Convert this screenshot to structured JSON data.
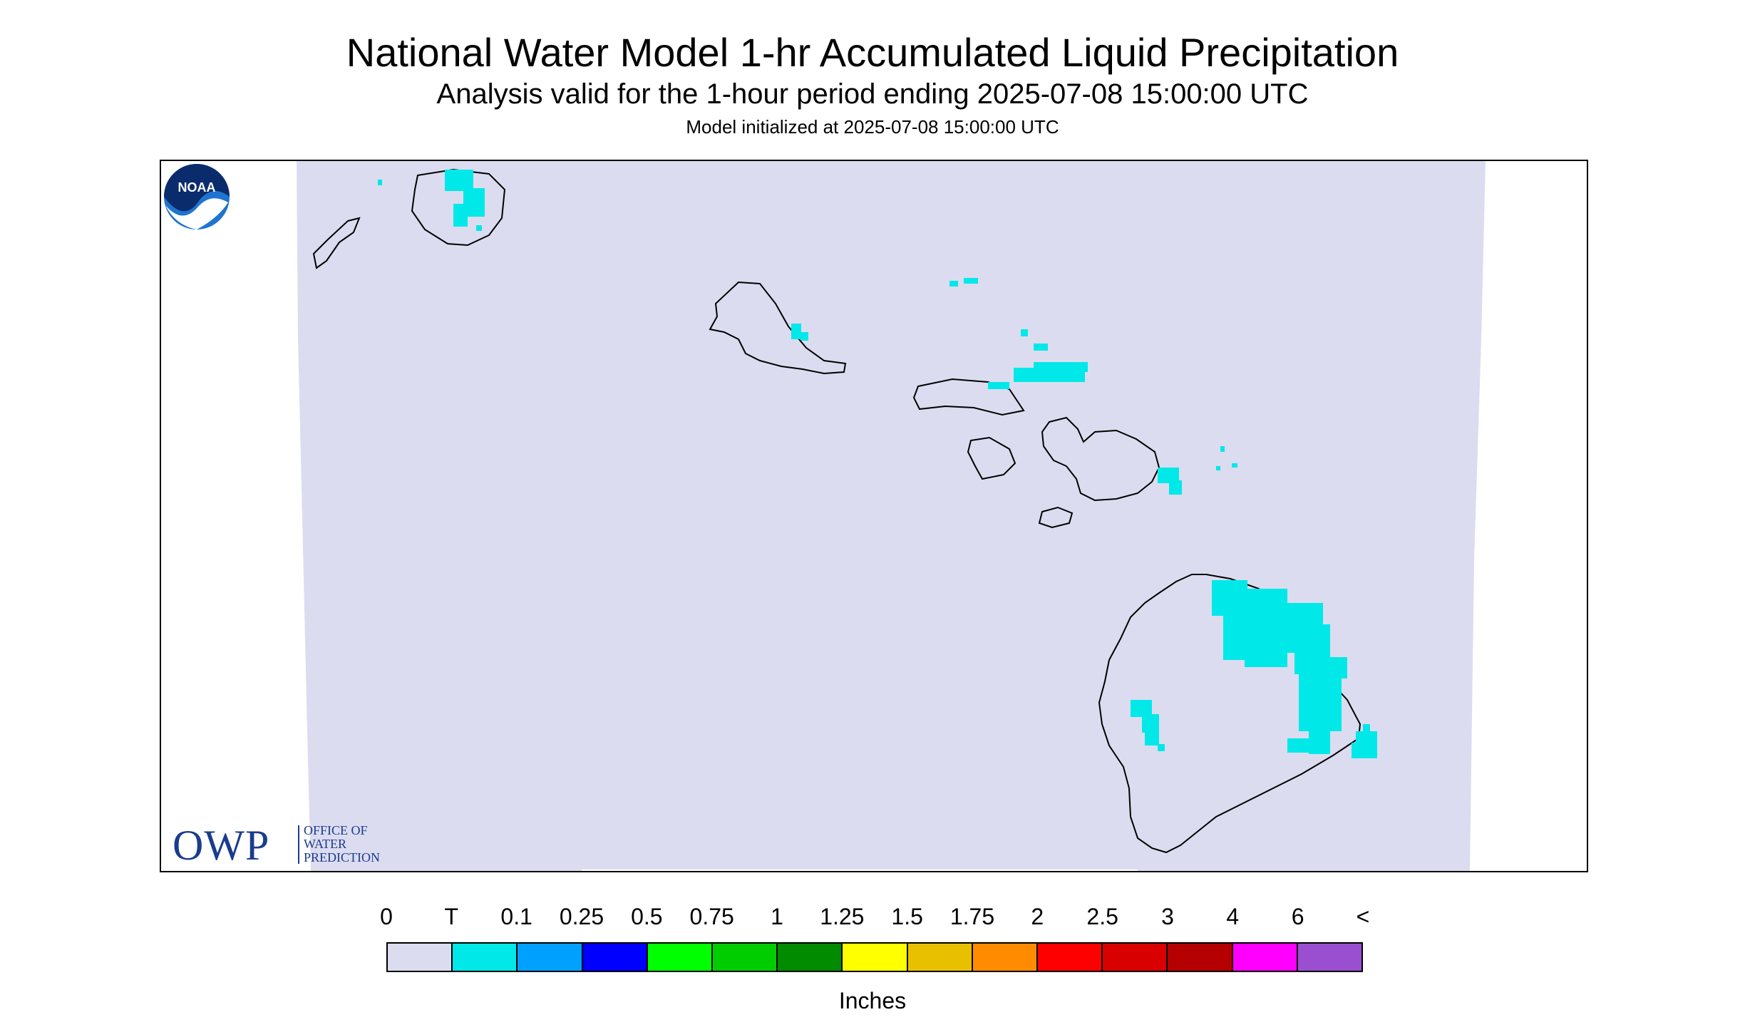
{
  "title": "National Water Model 1-hr Accumulated Liquid Precipitation",
  "subtitle": "Analysis valid for the 1-hour period ending 2025-07-08 15:00:00 UTC",
  "init_line": "Model initialized at 2025-07-08 15:00:00 UTC",
  "colors": {
    "background_field": "#dcdcf0",
    "trace_fill": "#00e8e8",
    "coastline": "#000000"
  },
  "owp_logo": {
    "mark": "OWP",
    "line1": "OFFICE OF",
    "line2": "WATER",
    "line3": "PREDICTION"
  },
  "noaa_logo": {
    "text": "NOAA"
  },
  "legend": {
    "labels": [
      "0",
      "T",
      "0.1",
      "0.25",
      "0.5",
      "0.75",
      "1",
      "1.25",
      "1.5",
      "1.75",
      "2",
      "2.5",
      "3",
      "4",
      "6",
      "<"
    ],
    "swatches": [
      "#dcdcf0",
      "#00e8e8",
      "#00a0ff",
      "#0000ff",
      "#00ff00",
      "#00cd00",
      "#008b00",
      "#ffff00",
      "#e8c000",
      "#ff8c00",
      "#ff0000",
      "#d80000",
      "#b40000",
      "#ff00ff",
      "#9a4fd0"
    ],
    "units": "Inches"
  }
}
